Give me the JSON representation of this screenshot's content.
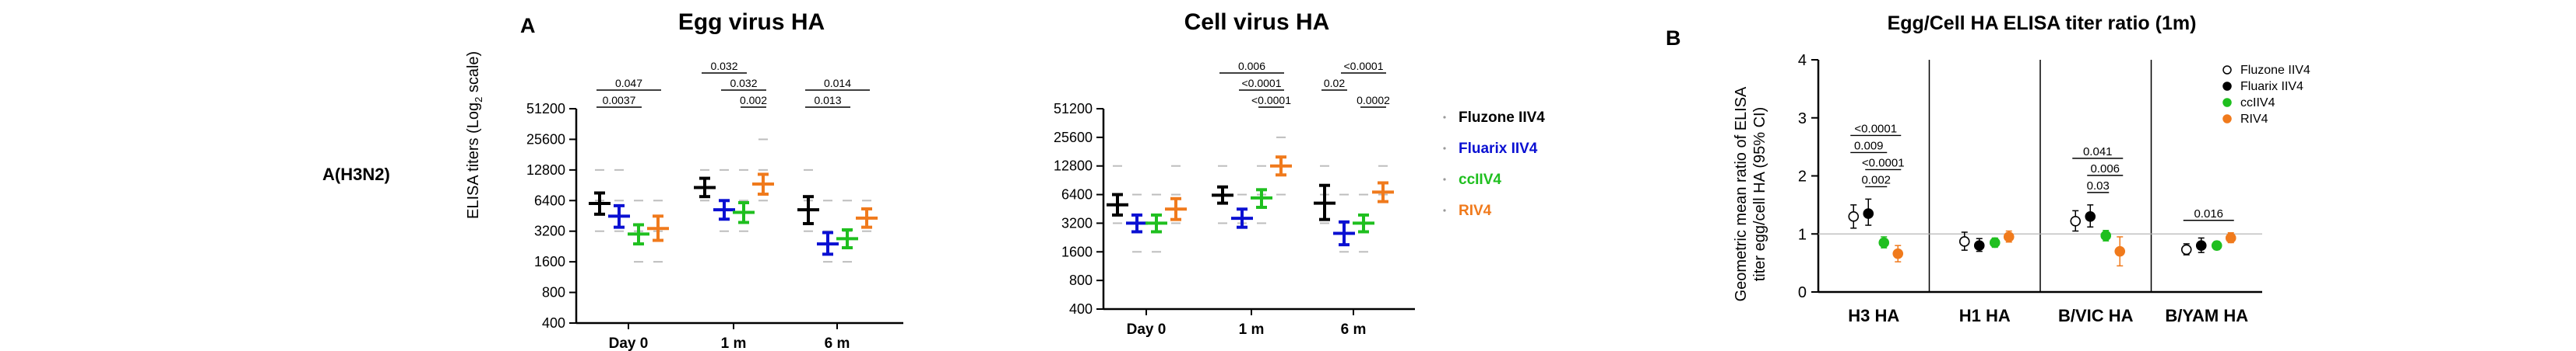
{
  "figure": {
    "row_label": "A(H3N2)",
    "panel_a_letter": "A",
    "panel_b_letter": "B",
    "y_axis_label_a_prefix": "ELISA titers (Log",
    "y_axis_label_a_sub": "2",
    "y_axis_label_a_suffix": " scale)",
    "y_axis_label_b_line1": "Geometric mean ratio of  ELISA",
    "y_axis_label_b_line2": "titer egg/cell HA (95% CI)",
    "colors": {
      "Fluzone IIV4": "#000000",
      "Fluarix IIV4": "#0a10d2",
      "ccIIV4": "#1fbf1f",
      "RIV4": "#f07a1c"
    }
  },
  "chart_data": [
    {
      "type": "scatter",
      "title": "Egg virus HA",
      "y_scale": "log2",
      "yticks": [
        400,
        800,
        1600,
        3200,
        6400,
        12800,
        25600,
        51200
      ],
      "ytick_labels": [
        "400",
        "800",
        "1600",
        "3200",
        "6400",
        "12800",
        "25600",
        "51200"
      ],
      "ylim": [
        400,
        51200
      ],
      "categories": [
        "Day 0",
        "1 m",
        "6 m"
      ],
      "series": [
        {
          "name": "Fluzone IIV4",
          "color": "#000000",
          "mean": [
            6000,
            8600,
            5200
          ],
          "low": [
            4700,
            7000,
            3800
          ],
          "high": [
            7600,
            10600,
            7000
          ]
        },
        {
          "name": "Fluarix IIV4",
          "color": "#0a10d2",
          "mean": [
            4500,
            5200,
            2400
          ],
          "low": [
            3500,
            4200,
            1900
          ],
          "high": [
            5700,
            6400,
            3100
          ]
        },
        {
          "name": "ccIIV4",
          "color": "#1fbf1f",
          "mean": [
            3000,
            4900,
            2700
          ],
          "low": [
            2400,
            3900,
            2200
          ],
          "high": [
            3700,
            6100,
            3300
          ]
        },
        {
          "name": "RIV4",
          "color": "#f07a1c",
          "mean": [
            3400,
            9300,
            4300
          ],
          "low": [
            2600,
            7400,
            3500
          ],
          "high": [
            4500,
            11600,
            5300
          ]
        }
      ],
      "comparisons": [
        {
          "group": "Day 0",
          "from": "Fluzone IIV4",
          "to": "RIV4",
          "label": "0.047"
        },
        {
          "group": "Day 0",
          "from": "Fluzone IIV4",
          "to": "ccIIV4",
          "label": "0.0037"
        },
        {
          "group": "1 m",
          "from": "Fluzone IIV4",
          "to": "ccIIV4",
          "label": "0.032"
        },
        {
          "group": "1 m",
          "from": "Fluarix IIV4",
          "to": "RIV4",
          "label": "0.032"
        },
        {
          "group": "1 m",
          "from": "ccIIV4",
          "to": "RIV4",
          "label": "0.002"
        },
        {
          "group": "6 m",
          "from": "Fluzone IIV4",
          "to": "RIV4",
          "label": "0.014"
        },
        {
          "group": "6 m",
          "from": "Fluzone IIV4",
          "to": "ccIIV4",
          "label": "0.013"
        }
      ]
    },
    {
      "type": "scatter",
      "title": "Cell virus HA",
      "y_scale": "log2",
      "yticks": [
        400,
        800,
        1600,
        3200,
        6400,
        12800,
        25600,
        51200
      ],
      "ytick_labels": [
        "400",
        "800",
        "1600",
        "3200",
        "6400",
        "12800",
        "25600",
        "51200"
      ],
      "ylim": [
        400,
        51200
      ],
      "categories": [
        "Day 0",
        "1 m",
        "6 m"
      ],
      "series": [
        {
          "name": "Fluzone IIV4",
          "color": "#000000",
          "mean": [
            5000,
            6300,
            5200
          ],
          "low": [
            3900,
            5200,
            3500
          ],
          "high": [
            6400,
            7700,
            8000
          ]
        },
        {
          "name": "Fluarix IIV4",
          "color": "#0a10d2",
          "mean": [
            3200,
            3600,
            2500
          ],
          "low": [
            2600,
            2900,
            1900
          ],
          "high": [
            3900,
            4500,
            3300
          ]
        },
        {
          "name": "ccIIV4",
          "color": "#1fbf1f",
          "mean": [
            3200,
            5900,
            3200
          ],
          "low": [
            2600,
            4700,
            2600
          ],
          "high": [
            3900,
            7200,
            3900
          ]
        },
        {
          "name": "RIV4",
          "color": "#f07a1c",
          "mean": [
            4500,
            12800,
            6800
          ],
          "low": [
            3500,
            10300,
            5400
          ],
          "high": [
            5800,
            15900,
            8500
          ]
        }
      ],
      "comparisons": [
        {
          "group": "1 m",
          "from": "Fluzone IIV4",
          "to": "RIV4",
          "label": "0.006"
        },
        {
          "group": "1 m",
          "from": "Fluarix IIV4",
          "to": "RIV4",
          "label": "<0.0001"
        },
        {
          "group": "1 m",
          "from": "ccIIV4",
          "to": "RIV4",
          "label": "<0.0001"
        },
        {
          "group": "6 m",
          "from": "Fluarix IIV4",
          "to": "RIV4",
          "label": "<0.0001"
        },
        {
          "group": "6 m",
          "from": "Fluzone IIV4",
          "to": "Fluarix IIV4",
          "label": "0.02"
        },
        {
          "group": "6 m",
          "from": "ccIIV4",
          "to": "RIV4",
          "label": "0.0002"
        }
      ]
    },
    {
      "type": "scatter",
      "title": "Egg/Cell HA ELISA titer ratio (1m)",
      "yticks": [
        0,
        1,
        2,
        3,
        4
      ],
      "ytick_labels": [
        "0",
        "1",
        "2",
        "3",
        "4"
      ],
      "ylim": [
        0,
        4
      ],
      "reference_line": 1,
      "categories": [
        "H3 HA",
        "H1 HA",
        "B/VIC HA",
        "B/YAM HA"
      ],
      "legend_position": "top-right",
      "series": [
        {
          "name": "Fluzone IIV4",
          "color": "#000000",
          "marker": "open-circle",
          "mean": [
            1.3,
            0.87,
            1.22,
            0.73
          ],
          "low": [
            1.1,
            0.72,
            1.05,
            0.64
          ],
          "high": [
            1.5,
            1.03,
            1.4,
            0.83
          ]
        },
        {
          "name": "Fluarix IIV4",
          "color": "#000000",
          "marker": "filled-circle",
          "mean": [
            1.35,
            0.8,
            1.3,
            0.8
          ],
          "low": [
            1.15,
            0.7,
            1.12,
            0.68
          ],
          "high": [
            1.6,
            0.92,
            1.5,
            0.93
          ]
        },
        {
          "name": "ccIIV4",
          "color": "#1fbf1f",
          "marker": "filled-circle",
          "mean": [
            0.85,
            0.85,
            0.97,
            0.8
          ],
          "low": [
            0.76,
            0.77,
            0.88,
            0.73
          ],
          "high": [
            0.95,
            0.93,
            1.06,
            0.87
          ]
        },
        {
          "name": "RIV4",
          "color": "#f07a1c",
          "marker": "filled-circle",
          "mean": [
            0.66,
            0.95,
            0.7,
            0.93
          ],
          "low": [
            0.52,
            0.86,
            0.45,
            0.85
          ],
          "high": [
            0.8,
            1.05,
            0.95,
            1.02
          ]
        }
      ],
      "comparisons": [
        {
          "group": "H3 HA",
          "from": "Fluzone IIV4",
          "to": "RIV4",
          "label": "<0.0001"
        },
        {
          "group": "H3 HA",
          "from": "Fluzone IIV4",
          "to": "ccIIV4",
          "label": "0.009"
        },
        {
          "group": "H3 HA",
          "from": "Fluarix IIV4",
          "to": "RIV4",
          "label": "<0.0001"
        },
        {
          "group": "H3 HA",
          "from": "Fluarix IIV4",
          "to": "ccIIV4",
          "label": "0.002"
        },
        {
          "group": "B/VIC HA",
          "from": "Fluzone IIV4",
          "to": "RIV4",
          "label": "0.041"
        },
        {
          "group": "B/VIC HA",
          "from": "Fluarix IIV4",
          "to": "RIV4",
          "label": "0.006"
        },
        {
          "group": "B/VIC HA",
          "from": "Fluarix IIV4",
          "to": "ccIIV4",
          "label": "0.03"
        },
        {
          "group": "B/YAM HA",
          "from": "Fluzone IIV4",
          "to": "RIV4",
          "label": "0.016"
        }
      ]
    }
  ]
}
